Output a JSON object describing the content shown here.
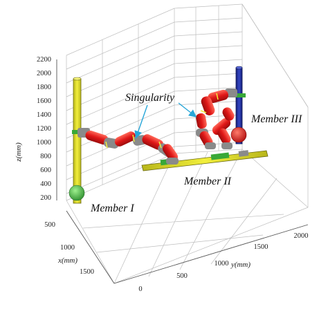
{
  "axes": {
    "z_label": "z(mm)",
    "x_label": "x(mm)",
    "y_label": "y(mm)",
    "z_ticks": [
      "2200",
      "2000",
      "1800",
      "1600",
      "1400",
      "1200",
      "1000",
      "800",
      "600",
      "400",
      "200"
    ],
    "x_ticks": [
      "500",
      "1000",
      "1500"
    ],
    "y_ticks": [
      "0",
      "500",
      "1000",
      "1500",
      "2000"
    ]
  },
  "annotations": {
    "singularity": "Singularity",
    "member_1": "Member I",
    "member_2": "Member II",
    "member_3": "Member III"
  },
  "colors": {
    "member_1_pole": "#e3e02a",
    "member_2_beam": "#e3e02a",
    "member_3_pole": "#1f2fa0",
    "robot_links": "#e01818",
    "green_joint": "#38a838",
    "gray_joint": "#8a8a8a",
    "arrow": "#27a6d8"
  }
}
